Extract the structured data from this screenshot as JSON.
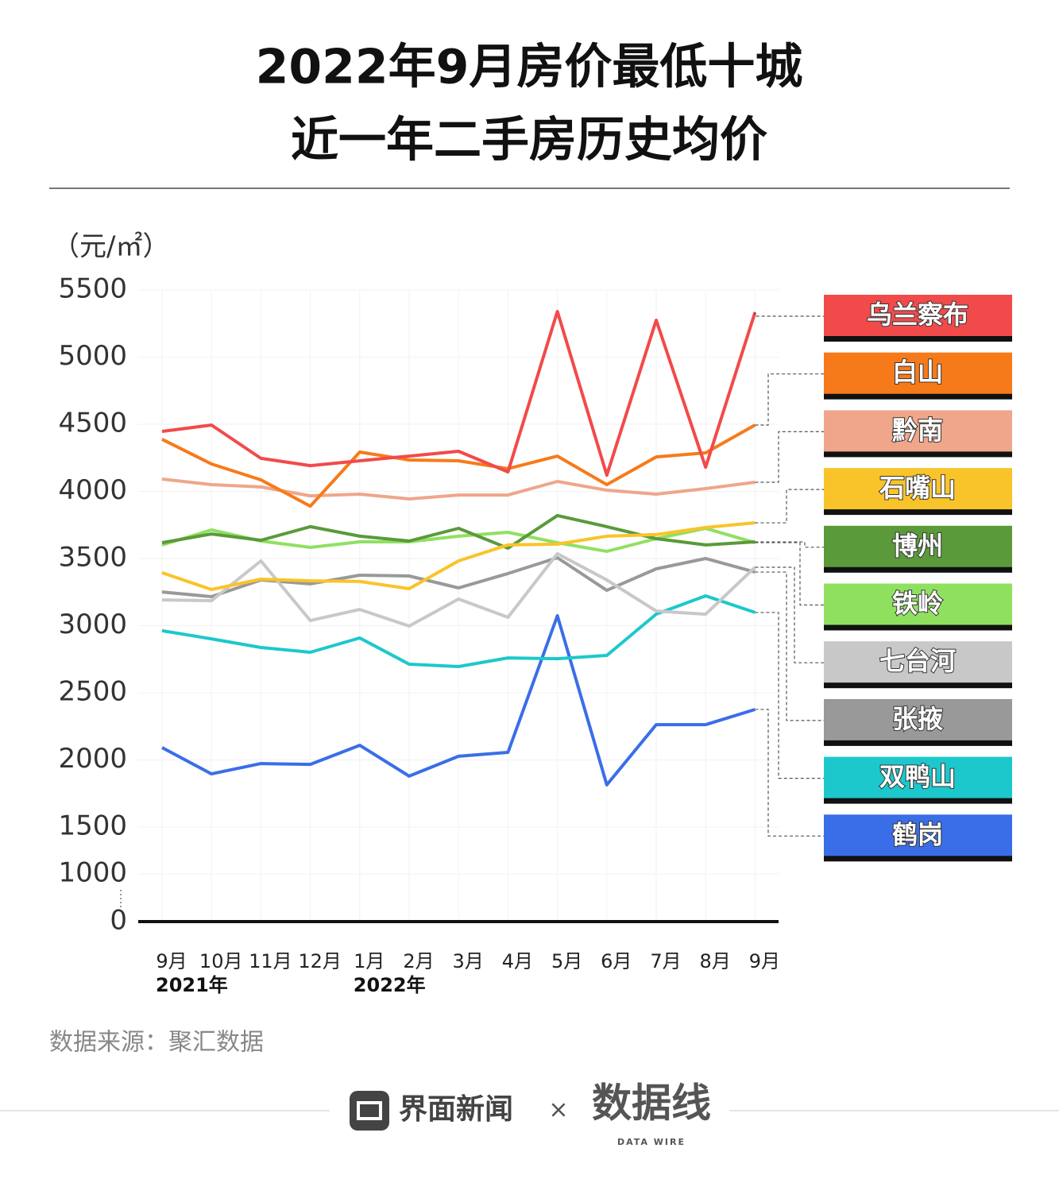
{
  "chart_data": {
    "type": "line",
    "title": [
      "2022年9月房价最低十城",
      "近一年二手房历史均价"
    ],
    "y_label": "（元/㎡）",
    "source": "数据来源：聚汇数据",
    "footer": {
      "brand": "界面新闻",
      "cross": "×",
      "partner": "数据线",
      "partner_en": "DATA WIRE"
    },
    "categories": [
      "9月",
      "10月",
      "11月",
      "12月",
      "1月",
      "2月",
      "3月",
      "4月",
      "5月",
      "6月",
      "7月",
      "8月",
      "9月"
    ],
    "category_years": [
      "2021年",
      null,
      null,
      null,
      "2022年",
      null,
      null,
      null,
      null,
      null,
      null,
      null,
      null
    ],
    "ylim": [
      0,
      5500
    ],
    "yticks": [
      0,
      1000,
      1500,
      2000,
      2500,
      3000,
      3500,
      4000,
      4500,
      5000,
      5500
    ],
    "grid": true,
    "series": [
      {
        "name": "乌兰察布",
        "color": "#f24a4a",
        "values": [
          4447,
          4494,
          4246,
          4192,
          4228,
          4263,
          4299,
          4145,
          5340,
          4121,
          5275,
          4180,
          5334
        ]
      },
      {
        "name": "白山",
        "color": "#f77a1a",
        "values": [
          4388,
          4204,
          4086,
          3890,
          4293,
          4234,
          4228,
          4169,
          4263,
          4050,
          4257,
          4287,
          4494
        ]
      },
      {
        "name": "黔南",
        "color": "#efa68a",
        "values": [
          4092,
          4050,
          4033,
          3967,
          3979,
          3944,
          3973,
          3973,
          4074,
          4009,
          3979,
          4021,
          4068
        ]
      },
      {
        "name": "石嘴山",
        "color": "#f9c42a",
        "values": [
          3394,
          3269,
          3346,
          3334,
          3329,
          3275,
          3482,
          3601,
          3607,
          3666,
          3678,
          3731,
          3766
        ]
      },
      {
        "name": "博州",
        "color": "#5a9a3a",
        "values": [
          3618,
          3683,
          3636,
          3737,
          3666,
          3630,
          3725,
          3577,
          3820,
          3737,
          3648,
          3601,
          3624
        ]
      },
      {
        "name": "铁岭",
        "color": "#90e060",
        "values": [
          3601,
          3713,
          3630,
          3583,
          3624,
          3624,
          3666,
          3695,
          3618,
          3553,
          3648,
          3725,
          3618
        ]
      },
      {
        "name": "七台河",
        "color": "#c8c8c8",
        "values": [
          3192,
          3186,
          3482,
          3038,
          3121,
          2997,
          3198,
          3062,
          3536,
          3340,
          3109,
          3085,
          3435
        ]
      },
      {
        "name": "张掖",
        "color": "#999999",
        "values": [
          3251,
          3216,
          3340,
          3311,
          3376,
          3370,
          3281,
          3388,
          3506,
          3263,
          3423,
          3500,
          3399
        ]
      },
      {
        "name": "双鸭山",
        "color": "#1cc8cc",
        "values": [
          2962,
          2902,
          2837,
          2802,
          2908,
          2713,
          2695,
          2760,
          2754,
          2778,
          3086,
          3222,
          3098
        ]
      },
      {
        "name": "鹤岗",
        "color": "#3a6ee8",
        "values": [
          2092,
          1896,
          1973,
          1967,
          2109,
          1879,
          2027,
          2056,
          3074,
          1814,
          2263,
          2263,
          2376
        ]
      }
    ]
  }
}
